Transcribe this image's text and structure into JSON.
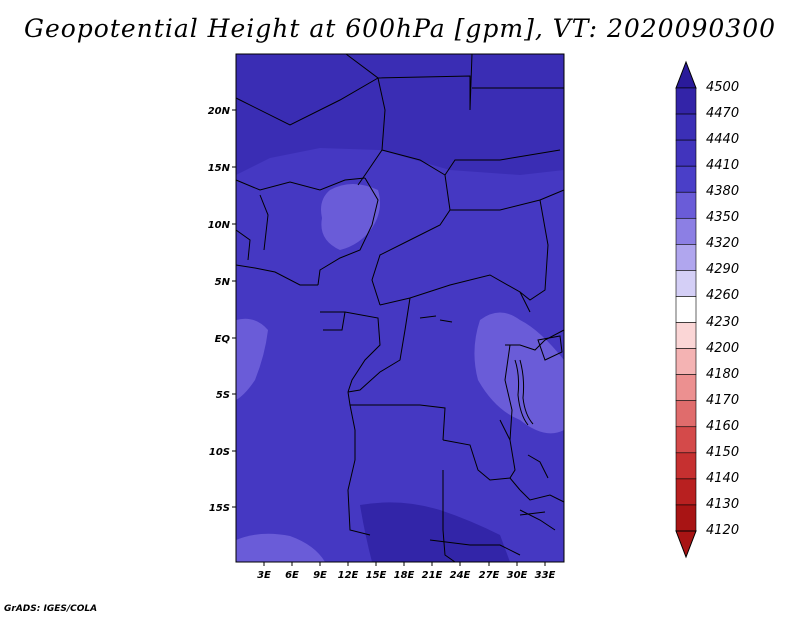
{
  "title": "Geopotential Height at 600hPa [gpm], VT: 2020090300",
  "credit": "GrADS: IGES/COLA",
  "lat_labels": [
    "20N",
    "15N",
    "10N",
    "5N",
    "EQ",
    "5S",
    "10S",
    "15S"
  ],
  "lon_labels": [
    "3E",
    "6E",
    "9E",
    "12E",
    "15E",
    "18E",
    "21E",
    "24E",
    "27E",
    "30E",
    "33E"
  ],
  "colorbar": {
    "levels": [
      "4500",
      "4470",
      "4440",
      "4410",
      "4380",
      "4350",
      "4320",
      "4290",
      "4260",
      "4230",
      "4200",
      "4180",
      "4170",
      "4160",
      "4150",
      "4140",
      "4130",
      "4120"
    ],
    "colors": [
      "#2a1a9a",
      "#3324a8",
      "#3b2fb6",
      "#4134bd",
      "#4a3fc8",
      "#6a5cd8",
      "#8c7fe4",
      "#b0a6ee",
      "#d4cff6",
      "#ffffff",
      "#fbd6d6",
      "#f4b3b3",
      "#ec9090",
      "#e06c6c",
      "#d44a4a",
      "#c63030",
      "#b82020",
      "#a81414"
    ]
  },
  "map_colors": {
    "base": "#4538c2",
    "north": "#3a2db4",
    "light": "#6a5cd8",
    "dark": "#3225a8"
  }
}
